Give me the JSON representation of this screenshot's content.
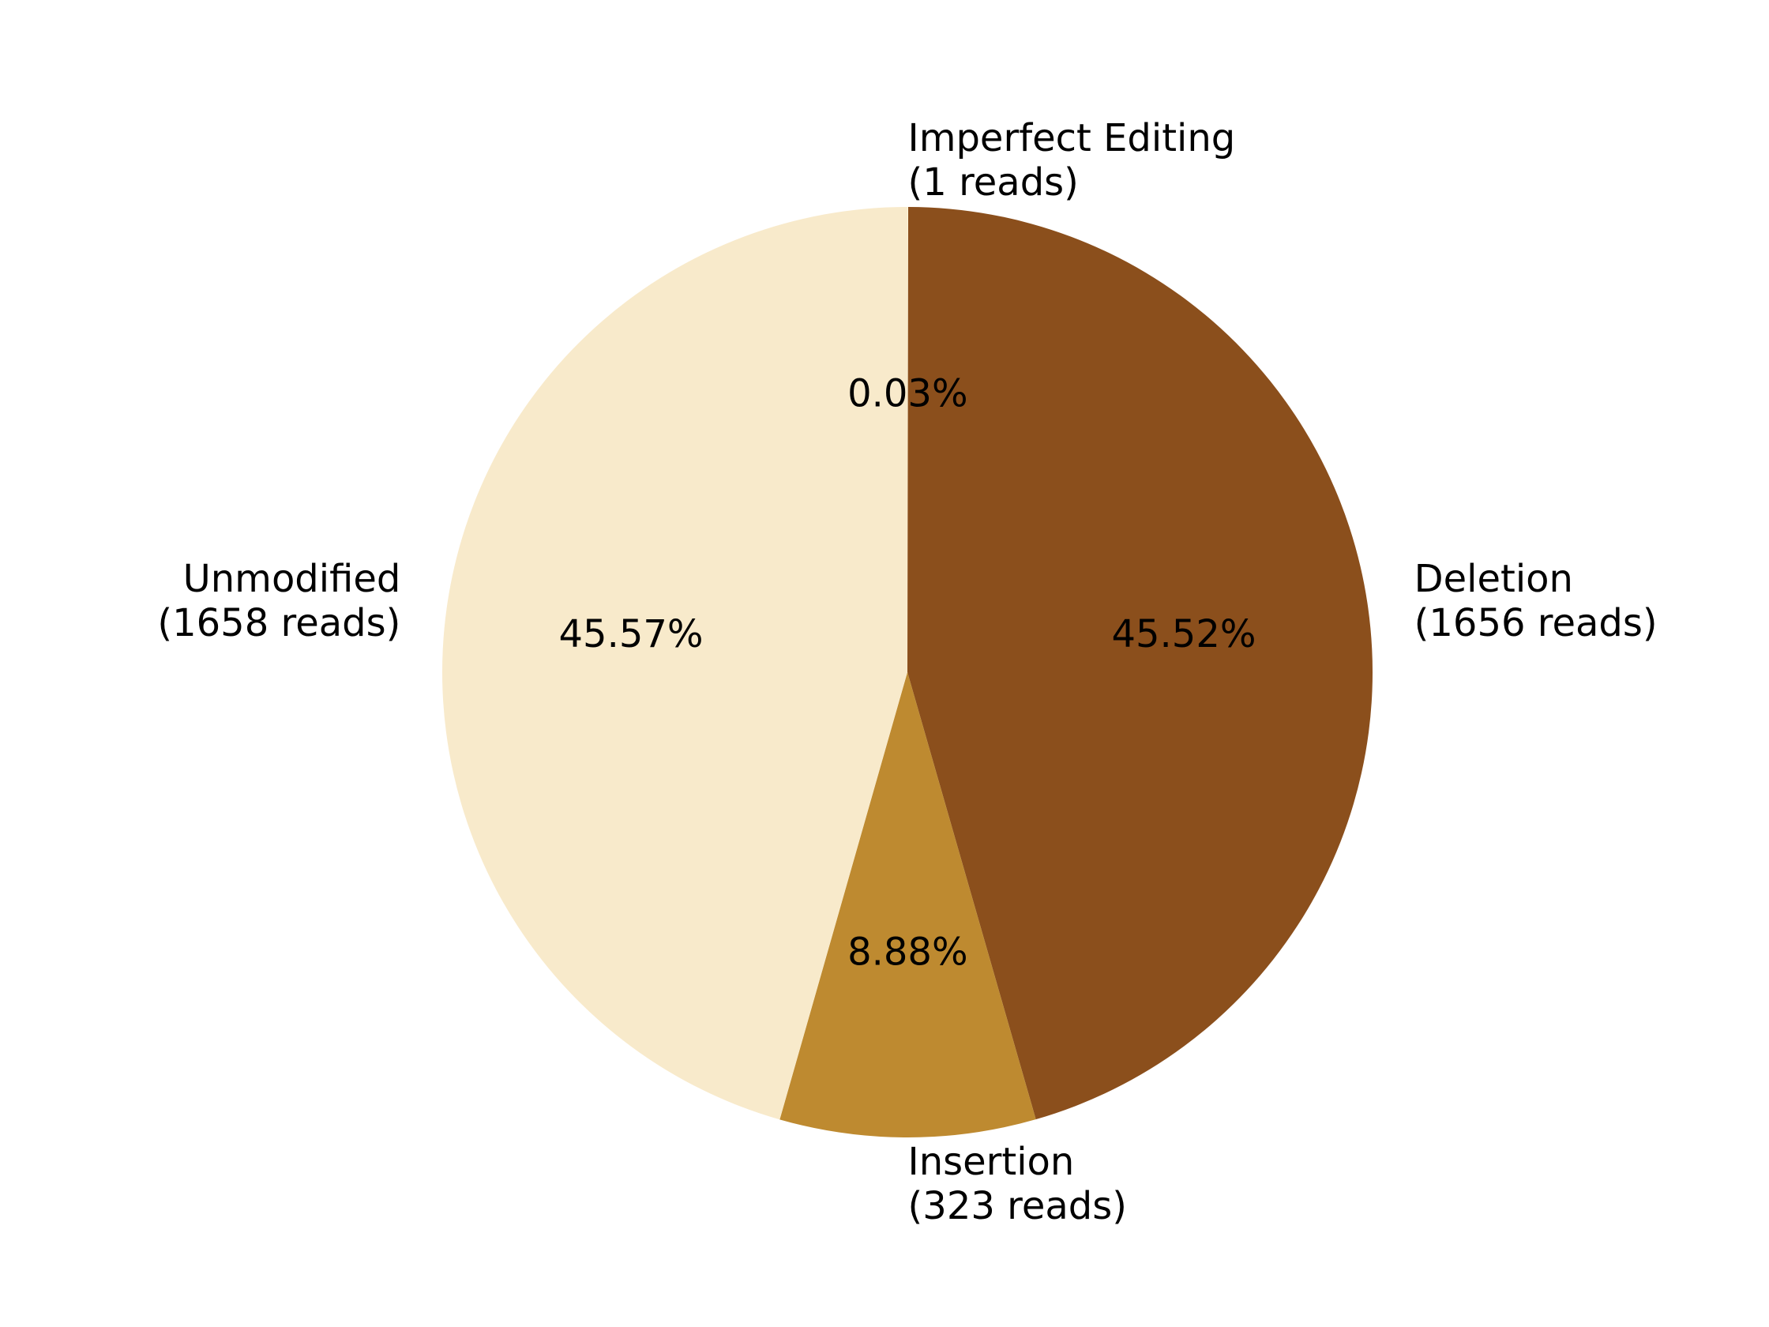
{
  "chart_data": {
    "type": "pie",
    "title": "",
    "start_angle_deg": 90,
    "direction": "clockwise",
    "slices": [
      {
        "label": "Imperfect Editing",
        "reads_label": "(1 reads)",
        "value": 1,
        "percent_label": "0.03%",
        "color": "#FFF8DC"
      },
      {
        "label": "Deletion",
        "reads_label": "(1656 reads)",
        "value": 1656,
        "percent_label": "45.52%",
        "color": "#8B4F1C"
      },
      {
        "label": "Insertion",
        "reads_label": "(323 reads)",
        "value": 323,
        "percent_label": "8.88%",
        "color": "#BE8A30"
      },
      {
        "label": "Unmodified",
        "reads_label": "(1658 reads)",
        "value": 1658,
        "percent_label": "45.57%",
        "color": "#F8EACB"
      }
    ]
  }
}
